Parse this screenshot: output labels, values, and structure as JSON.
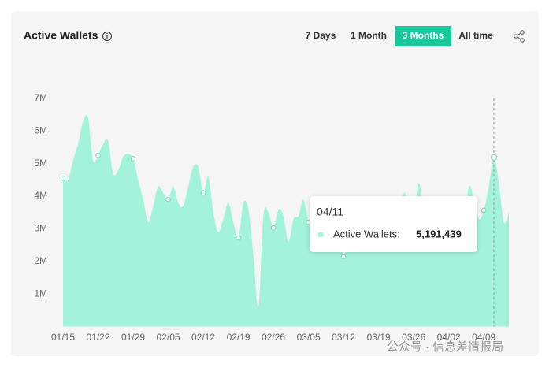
{
  "range_buttons": [
    "7 Days",
    "1 Month",
    "3 Months",
    "All time"
  ],
  "active_range": 2,
  "watermark": "公众号 · 信息差情报局",
  "chart_data": {
    "type": "area",
    "title": "Active Wallets",
    "color": "#a3f2da",
    "categories": [
      "01/15",
      null,
      null,
      null,
      null,
      null,
      null,
      "01/22",
      null,
      null,
      null,
      null,
      null,
      null,
      "01/29",
      null,
      null,
      null,
      null,
      null,
      null,
      "02/05",
      null,
      null,
      null,
      null,
      null,
      null,
      "02/12",
      null,
      null,
      null,
      null,
      null,
      null,
      "02/19",
      null,
      null,
      null,
      null,
      null,
      null,
      "02/26",
      null,
      null,
      null,
      null,
      null,
      null,
      "03/05",
      null,
      null,
      null,
      null,
      null,
      null,
      "03/12",
      null,
      null,
      null,
      null,
      null,
      null,
      "03/19",
      null,
      null,
      null,
      null,
      null,
      null,
      "03/26",
      null,
      null,
      null,
      null,
      null,
      null,
      "04/02",
      null,
      null,
      null,
      null,
      null,
      null,
      "04/09",
      null,
      "04/11",
      null,
      null,
      null
    ],
    "values": [
      4550000,
      4500000,
      5100000,
      5600000,
      6300000,
      6400000,
      5100000,
      5250000,
      5600000,
      5700000,
      4700000,
      4800000,
      5200000,
      5300000,
      5150000,
      4500000,
      3900000,
      3200000,
      3700000,
      4300000,
      4100000,
      3900000,
      4300000,
      3800000,
      3700000,
      4300000,
      4900000,
      4900000,
      4100000,
      4600000,
      3500000,
      2900000,
      3300000,
      3800000,
      3200000,
      2720000,
      3800000,
      3600000,
      2200000,
      600000,
      3400000,
      3500000,
      3030000,
      3600000,
      3400000,
      2600000,
      3300000,
      3400000,
      3900000,
      3200000,
      2800000,
      4000000,
      3300000,
      3600000,
      3000000,
      3400000,
      2140000,
      3000000,
      3500000,
      3200000,
      3800000,
      3400000,
      3100000,
      3600000,
      3300000,
      3900000,
      3500000,
      3200000,
      4100000,
      3700000,
      3400000,
      4400000,
      3600000,
      3300000,
      3800000,
      3500000,
      3100000,
      3600000,
      3200000,
      3500000,
      3100000,
      4300000,
      3900000,
      3300000,
      3570000,
      4300000,
      5191439,
      4400000,
      3200000,
      3500000
    ],
    "ylim": [
      0,
      7000000
    ],
    "yticks": [
      {
        "value": 1000000,
        "label": "1M"
      },
      {
        "value": 2000000,
        "label": "2M"
      },
      {
        "value": 3000000,
        "label": "3M"
      },
      {
        "value": 4000000,
        "label": "4M"
      },
      {
        "value": 5000000,
        "label": "5M"
      },
      {
        "value": 6000000,
        "label": "6M"
      },
      {
        "value": 7000000,
        "label": "7M"
      }
    ],
    "grid": false,
    "tooltip": {
      "label": "Active Wallets:",
      "value_label": "5,191,439"
    }
  }
}
